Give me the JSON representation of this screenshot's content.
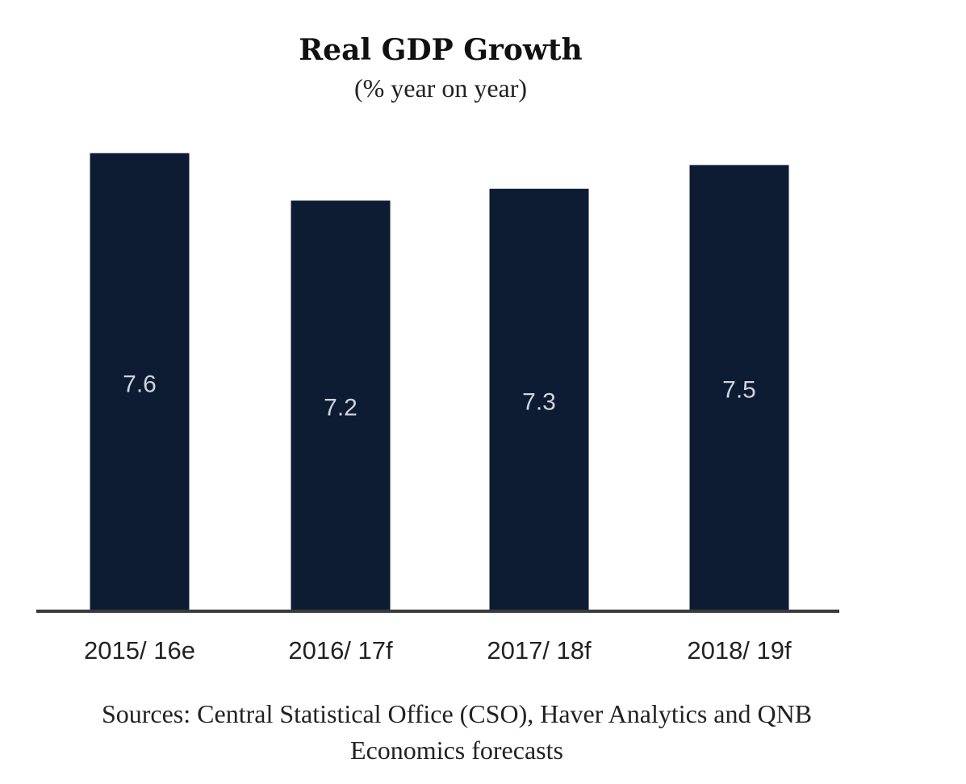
{
  "chart_data": {
    "type": "bar",
    "title": "Real GDP Growth",
    "subtitle": "(% year on year)",
    "categories": [
      "2015/ 16e",
      "2016/ 17f",
      "2017/ 18f",
      "2018/ 19f"
    ],
    "values": [
      7.6,
      7.2,
      7.3,
      7.5
    ],
    "value_labels": [
      "7.6",
      "7.2",
      "7.3",
      "7.5"
    ],
    "xlabel": "",
    "ylabel": "",
    "ylim": [
      3.74,
      7.87
    ],
    "grid": false,
    "bar_color": "#0d1c33",
    "axis_color": "#3a3a3a",
    "source_line1": "Sources: Central Statistical Office (CSO), Haver Analytics and QNB",
    "source_line2": "Economics forecasts"
  }
}
